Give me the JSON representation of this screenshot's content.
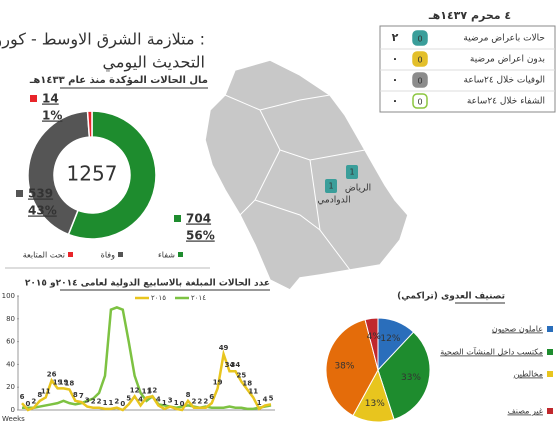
{
  "header": {
    "title_line1": "متلازمة الشرق الاوسط - كورونا :",
    "title_line2": "التحديث اليومي"
  },
  "status_table": {
    "date": "٤ محرم ١٤٣٧هـ",
    "rows": [
      {
        "label": "حالات باعراض مرضية",
        "count": "٢",
        "badge": "0",
        "color": "#3a9e9a"
      },
      {
        "label": "بدون اعراض مرضية",
        "count": "٠",
        "badge": "0",
        "color": "#e3bf2a"
      },
      {
        "label": "الوفيات خلال ٢٤ساعة",
        "count": "٠",
        "badge": "0",
        "color": "#8c8c8c"
      },
      {
        "label": "الشفاء خلال ٢٤ساعة",
        "count": "٠",
        "badge": "0",
        "color": "#8cc63f"
      }
    ]
  },
  "map": {
    "markers": [
      {
        "label": "الرياض",
        "count": 1
      },
      {
        "label": "الدوادمي",
        "count": 1
      }
    ]
  },
  "chart_data": [
    {
      "type": "donut",
      "title": "مال الحالات المؤكدة منذ عام ١٤٣٣هـ",
      "total": 1257,
      "categories": [
        "شفاء",
        "وفاة",
        "تحت المتابعة"
      ],
      "values": [
        704,
        539,
        14
      ],
      "shares": {
        "values": [
          56,
          43,
          1
        ],
        "value_labels": [
          "56%",
          "43%",
          "1%"
        ]
      },
      "colors": [
        "#1e8c2e",
        "#555555",
        "#e8252a"
      ]
    },
    {
      "type": "line",
      "title": "عدد الحالات المبلغة بالاسابيع الدولية لعامى ٢٠١٤و ٢٠١٥",
      "xlabel": "Weeks",
      "ylim": [
        0,
        100
      ],
      "yticks": [
        0,
        20,
        40,
        60,
        80,
        100
      ],
      "series": [
        {
          "name": "٢٠١٤",
          "color": "#7dc242",
          "values": [
            2,
            2,
            2,
            3,
            4,
            5,
            6,
            8,
            6,
            5,
            6,
            8,
            10,
            15,
            30,
            88,
            90,
            88,
            60,
            30,
            15,
            8,
            12,
            5,
            4,
            3,
            2,
            3,
            4,
            3,
            2,
            3,
            2,
            2,
            2,
            3,
            2,
            2,
            1,
            1,
            2,
            3,
            4
          ],
          "data_labels": false
        },
        {
          "name": "٢٠١٥",
          "color": "#e8c51e",
          "values": [
            6,
            0,
            2,
            8,
            11,
            26,
            19,
            19,
            18,
            8,
            7,
            3,
            2,
            2,
            1,
            1,
            2,
            0,
            5,
            12,
            4,
            11,
            12,
            4,
            1,
            3,
            1,
            0,
            8,
            2,
            2,
            2,
            6,
            19,
            49,
            34,
            34,
            25,
            18,
            11,
            1,
            4,
            5
          ],
          "data_labels": true
        }
      ]
    },
    {
      "type": "pie",
      "title": "تصنيف العدوى (تراكمي)",
      "categories": [
        "عاملون صحيون",
        "مكتسب داخل المنشآت الصحية",
        "مخالطين",
        null,
        "غير مصنف"
      ],
      "values": [
        12,
        33,
        13,
        38,
        4
      ],
      "value_labels": [
        "12%",
        "33%",
        "13%",
        "38%",
        "4%"
      ],
      "colors": [
        "#2a6ebb",
        "#1e8c2e",
        "#e8c51e",
        "#e46c0a",
        "#c0282d"
      ]
    }
  ]
}
